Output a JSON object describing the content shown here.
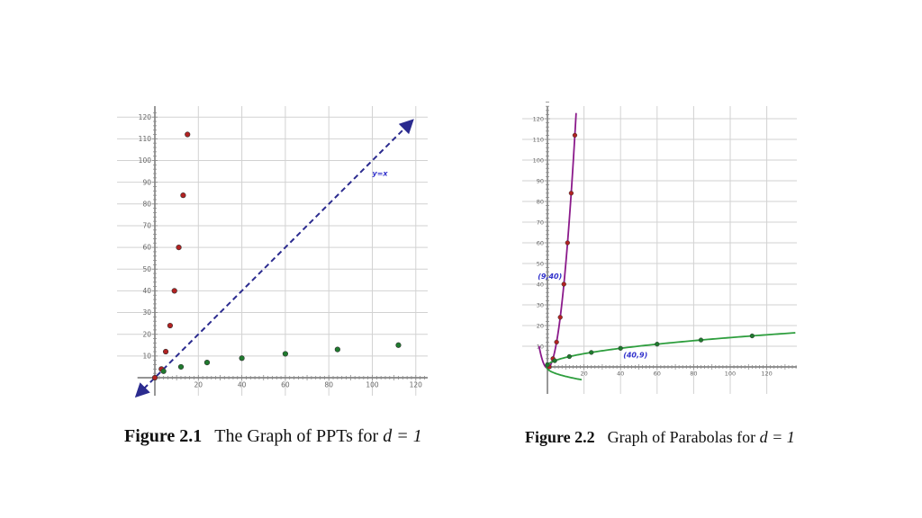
{
  "captions": [
    {
      "label": "Figure 2.1",
      "text": "The Graph of PPTs for ",
      "var": "d = 1"
    },
    {
      "label": "Figure 2.2",
      "text": "Graph of Parabolas for ",
      "var": "d = 1"
    }
  ],
  "chart_data": [
    {
      "type": "scatter",
      "title": "",
      "xlabel": "",
      "ylabel": "",
      "xlim": [
        -8,
        124
      ],
      "ylim": [
        -7,
        122
      ],
      "x_ticks": [
        20,
        40,
        60,
        80,
        100,
        120
      ],
      "y_ticks": [
        10,
        20,
        30,
        40,
        50,
        60,
        70,
        80,
        90,
        100,
        110,
        120
      ],
      "grid": true,
      "series": [
        {
          "color": "#b22222",
          "points": [
            [
              0,
              0
            ],
            [
              3,
              4
            ],
            [
              5,
              12
            ],
            [
              7,
              24
            ],
            [
              9,
              40
            ],
            [
              11,
              60
            ],
            [
              13,
              84
            ],
            [
              15,
              112
            ]
          ]
        },
        {
          "color": "#1f7a2e",
          "points": [
            [
              4,
              3
            ],
            [
              12,
              5
            ],
            [
              24,
              7
            ],
            [
              40,
              9
            ],
            [
              60,
              11
            ],
            [
              84,
              13
            ],
            [
              112,
              15
            ]
          ]
        }
      ],
      "lines": [
        {
          "label": "y=x",
          "style": "dashed",
          "color": "#2b2b8f",
          "from": [
            -8,
            -8
          ],
          "to": [
            118,
            118
          ]
        }
      ]
    },
    {
      "type": "line",
      "title": "",
      "xlabel": "",
      "ylabel": "",
      "xlim": [
        0,
        136
      ],
      "ylim": [
        -5,
        128
      ],
      "x_ticks": [
        20,
        40,
        60,
        80,
        100,
        120
      ],
      "y_ticks": [
        10,
        20,
        30,
        40,
        50,
        60,
        70,
        80,
        90,
        100,
        110,
        120
      ],
      "grid": true,
      "series": [
        {
          "curve": "y = (x^2 - 1)/2",
          "color": "#8b1a8b",
          "points": [
            [
              1,
              0
            ],
            [
              3,
              4
            ],
            [
              5,
              12
            ],
            [
              7,
              24
            ],
            [
              9,
              40
            ],
            [
              11,
              60
            ],
            [
              13,
              84
            ],
            [
              15,
              112
            ]
          ],
          "point_color": "#b22222"
        },
        {
          "curve": "x = (y^2 - 1)/2",
          "color": "#2e9e3e",
          "points": [
            [
              0,
              1
            ],
            [
              4,
              3
            ],
            [
              12,
              5
            ],
            [
              24,
              7
            ],
            [
              40,
              9
            ],
            [
              60,
              11
            ],
            [
              84,
              13
            ],
            [
              112,
              15
            ]
          ],
          "point_color": "#1f7a2e"
        }
      ],
      "annotations": [
        {
          "text": "(9,40)",
          "x": 9,
          "y": 40,
          "color": "#3333cc"
        },
        {
          "text": "(40,9)",
          "x": 40,
          "y": 9,
          "color": "#3333cc"
        }
      ]
    }
  ]
}
